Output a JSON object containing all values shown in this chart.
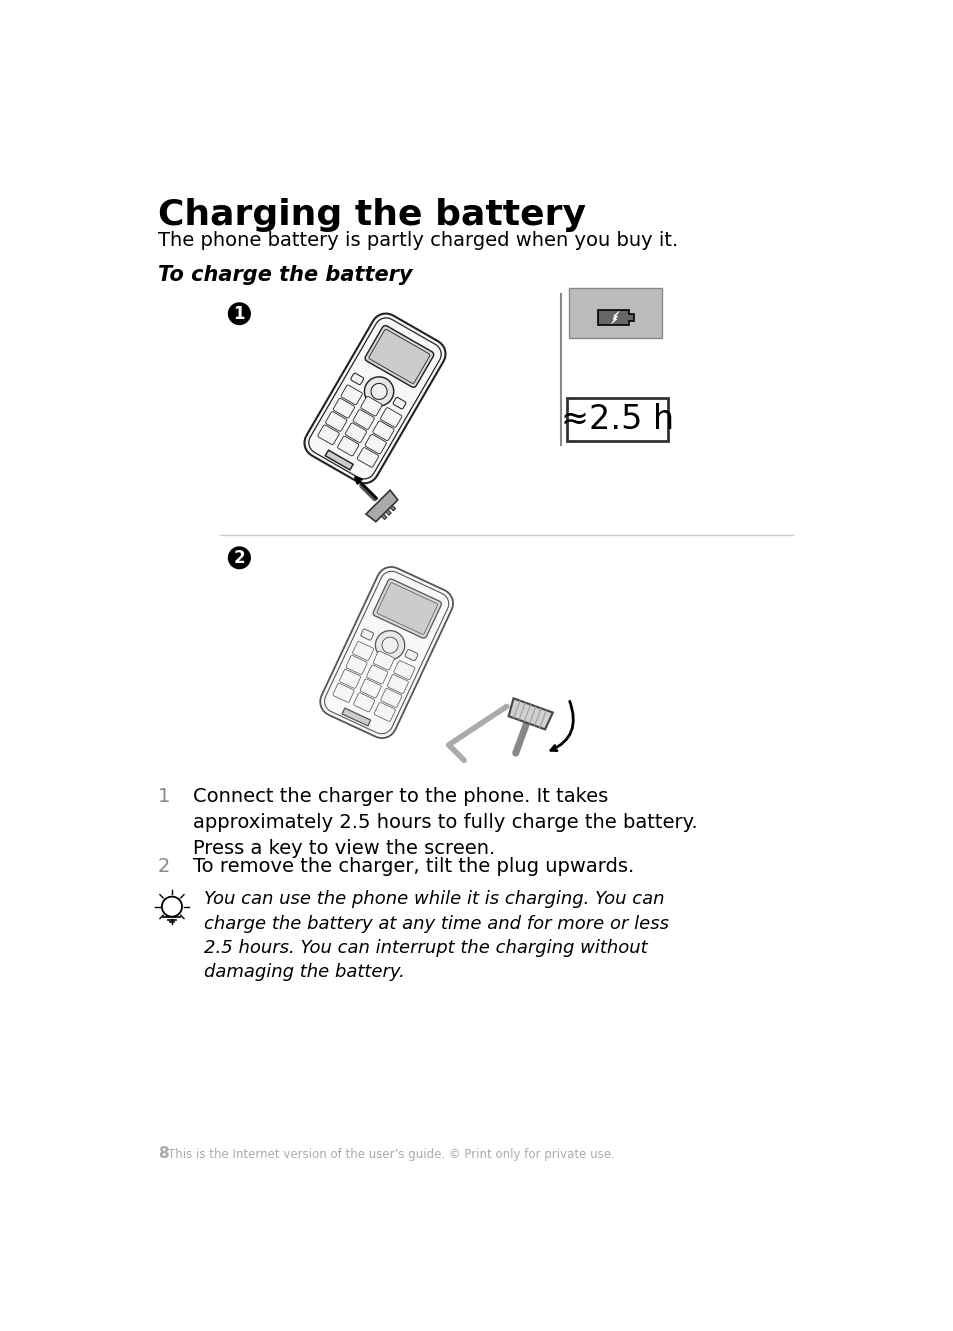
{
  "title": "Charging the battery",
  "subtitle": "The phone battery is partly charged when you buy it.",
  "section_label": "To charge the battery",
  "step1_text": "Connect the charger to the phone. It takes\napproximately 2.5 hours to fully charge the battery.\nPress a key to view the screen.",
  "step2_text": "To remove the charger, tilt the plug upwards.",
  "tip_text": "You can use the phone while it is charging. You can\ncharge the battery at any time and for more or less\n2.5 hours. You can interrupt the charging without\ndamaging the battery.",
  "footer_num": "8",
  "footer_text": "This is the Internet version of the user’s guide. © Print only for private use.",
  "time_label": "≈2.5 h",
  "bg_color": "#ffffff",
  "text_color": "#000000",
  "gray_color": "#aaaaaa",
  "step_num_color": "#888888",
  "phone_body_color": "#f5f5f5",
  "phone_edge_color": "#333333",
  "phone_screen_color": "#e0e0e0",
  "phone_key_color": "#ffffff",
  "charge_box_bg": "#c8c8c8",
  "charge_box_border": "#333333"
}
